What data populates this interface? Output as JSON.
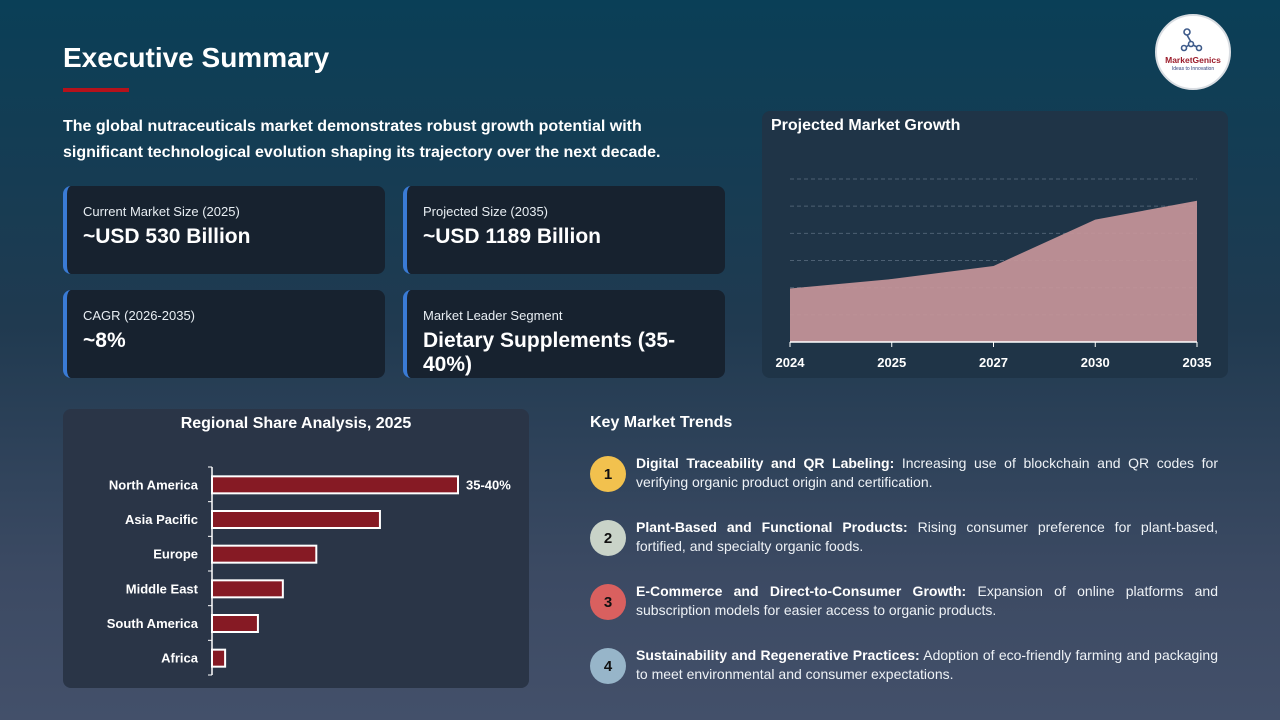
{
  "header": {
    "title": "Executive Summary",
    "intro": "The global nutraceuticals market demonstrates robust growth potential with significant technological evolution shaping its trajectory over the next decade.",
    "logo_text": "MarketGenics",
    "logo_tagline": "Ideas to Innovation",
    "accent": "#b5121b"
  },
  "cards": [
    {
      "label": "Current Market Size (2025)",
      "value": "~USD 530 Billion"
    },
    {
      "label": "Projected Size (2035)",
      "value": "~USD 1189 Billion"
    },
    {
      "label": "CAGR (2026-2035)",
      "value": "~8%"
    },
    {
      "label": "Market Leader Segment",
      "value": "Dietary Supplements (35-40%)"
    }
  ],
  "chart_data": [
    {
      "type": "area",
      "title": "Projected Market Growth",
      "categories": [
        "2024",
        "2025",
        "2027",
        "2030",
        "2035"
      ],
      "values": [
        450,
        530,
        640,
        1030,
        1189
      ],
      "ylim": [
        0,
        1372
      ],
      "grid": true,
      "color": "#c59599"
    },
    {
      "type": "bar",
      "orientation": "horizontal",
      "title": "Regional Share Analysis, 2025",
      "categories": [
        "North America",
        "Asia Pacific",
        "Europe",
        "Middle East",
        "South America",
        "Africa"
      ],
      "values": [
        37.5,
        25.6,
        15.9,
        10.8,
        7,
        2
      ],
      "data_labels": [
        "35-40%",
        "",
        "",
        "",
        "",
        ""
      ],
      "color": "#861a24"
    }
  ],
  "trends": {
    "title": "Key Market Trends",
    "items": [
      {
        "n": "1",
        "color": "#f2c14e",
        "head": "Digital Traceability and QR Labeling:",
        "body": " Increasing use of blockchain and QR codes for verifying organic product origin and certification."
      },
      {
        "n": "2",
        "color": "#c9d3c8",
        "head": "Plant-Based and Functional Products:",
        "body": " Rising consumer preference for plant-based, fortified, and specialty organic foods."
      },
      {
        "n": "3",
        "color": "#d9605f",
        "head": "E-Commerce and Direct-to-Consumer Growth:",
        "body": " Expansion of online platforms and subscription models for easier access to organic products."
      },
      {
        "n": "4",
        "color": "#97b5c9",
        "head": "Sustainability and Regenerative Practices:",
        "body": " Adoption of eco-friendly farming and packaging to meet environmental and consumer expectations."
      }
    ]
  }
}
